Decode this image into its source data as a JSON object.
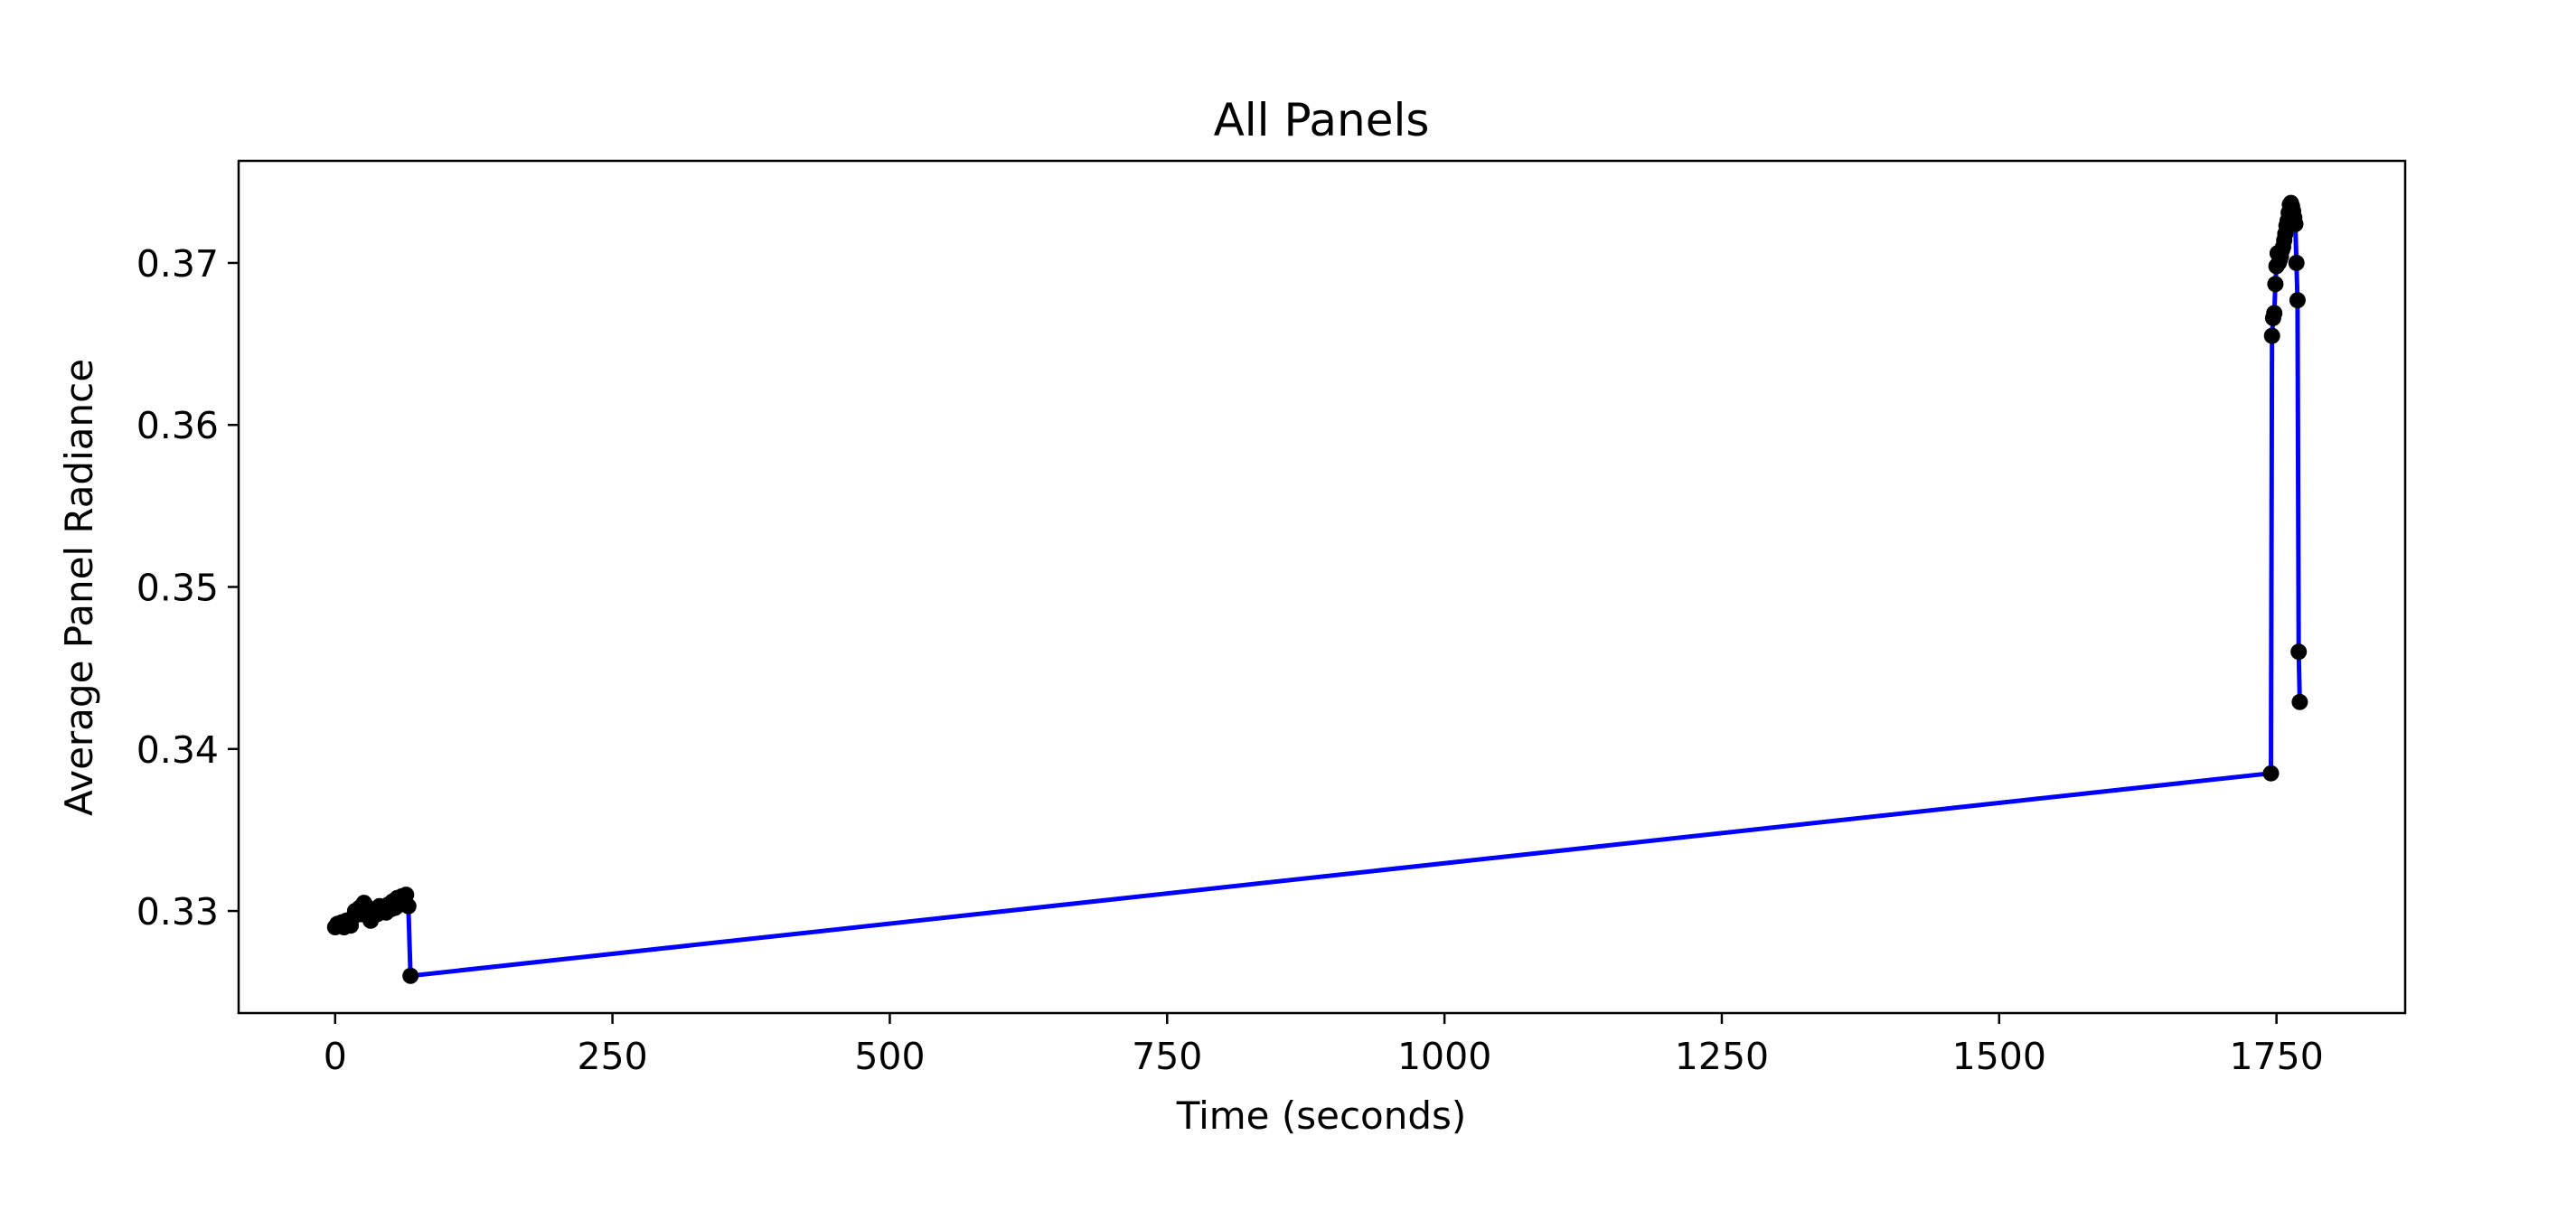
{
  "chart_data": {
    "type": "line",
    "title": "All Panels",
    "xlabel": "Time (seconds)",
    "ylabel": "Average Panel Radiance",
    "xlim": [
      -87,
      1866
    ],
    "ylim": [
      0.3237,
      0.3763
    ],
    "xticks": [
      0,
      250,
      500,
      750,
      1000,
      1250,
      1500,
      1750
    ],
    "xtick_labels": [
      "0",
      "250",
      "500",
      "750",
      "1000",
      "1250",
      "1500",
      "1750"
    ],
    "yticks": [
      0.33,
      0.34,
      0.35,
      0.36,
      0.37
    ],
    "ytick_labels": [
      "0.33",
      "0.34",
      "0.35",
      "0.36",
      "0.37"
    ],
    "grid": false,
    "legend": null,
    "line_color": "#0000ff",
    "marker_color": "#000000",
    "series": [
      {
        "x": [
          0,
          2,
          4,
          6,
          8,
          10,
          12,
          14,
          16,
          18,
          20,
          22,
          24,
          26,
          28,
          30,
          32,
          34,
          36,
          38,
          40,
          42,
          44,
          46,
          48,
          50,
          52,
          54,
          56,
          58,
          60,
          62,
          64,
          66,
          68,
          1745,
          1746,
          1747,
          1748,
          1749,
          1750,
          1751,
          1752,
          1753,
          1754,
          1755,
          1756,
          1757,
          1758,
          1759,
          1760,
          1761,
          1762,
          1763,
          1764,
          1765,
          1766,
          1767,
          1768,
          1769,
          1770,
          1771
        ],
        "y": [
          0.329,
          0.3292,
          0.3291,
          0.3293,
          0.329,
          0.3294,
          0.3292,
          0.3291,
          0.3296,
          0.33,
          0.3299,
          0.3302,
          0.3298,
          0.3305,
          0.3303,
          0.3297,
          0.3294,
          0.3299,
          0.3301,
          0.3298,
          0.3303,
          0.33,
          0.3302,
          0.3299,
          0.3304,
          0.3301,
          0.3306,
          0.3302,
          0.3308,
          0.3304,
          0.3309,
          0.3306,
          0.331,
          0.3303,
          0.326,
          0.3385,
          0.3655,
          0.3666,
          0.3669,
          0.3687,
          0.3698,
          0.3706,
          0.37,
          0.3702,
          0.3704,
          0.3708,
          0.371,
          0.3714,
          0.3718,
          0.3723,
          0.3726,
          0.3731,
          0.3736,
          0.3737,
          0.3735,
          0.3732,
          0.3728,
          0.3724,
          0.37,
          0.3677,
          0.346,
          0.3429
        ]
      }
    ]
  }
}
